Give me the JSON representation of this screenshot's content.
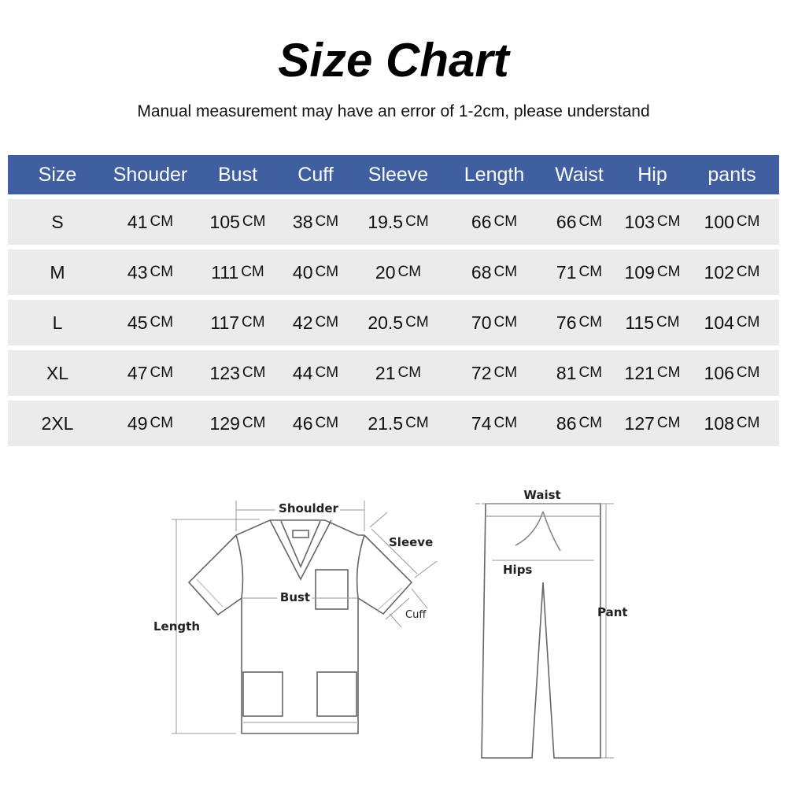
{
  "title": "Size Chart",
  "subtitle": "Manual measurement may have an error of 1-2cm, please understand",
  "table": {
    "header_color": "#3f5fa0",
    "unit": "CM",
    "headers": [
      "Size",
      "Shouder",
      "Bust",
      "Cuff",
      "Sleeve",
      "Length",
      "Waist",
      "Hip",
      "pants"
    ],
    "rows": [
      [
        "S",
        "41",
        "105",
        "38",
        "19.5",
        "66",
        "66",
        "103",
        "100"
      ],
      [
        "M",
        "43",
        "111",
        "40",
        "20",
        "68",
        "71",
        "109",
        "102"
      ],
      [
        "L",
        "45",
        "117",
        "42",
        "20.5",
        "70",
        "76",
        "115",
        "104"
      ],
      [
        "XL",
        "47",
        "123",
        "44",
        "21",
        "72",
        "81",
        "121",
        "106"
      ],
      [
        "2XL",
        "49",
        "129",
        "46",
        "21.5",
        "74",
        "86",
        "127",
        "108"
      ]
    ]
  },
  "diagram": {
    "shirt_labels": {
      "shoulder": "Shoulder",
      "sleeve": "Sleeve",
      "bust": "Bust",
      "cuff": "Cuff",
      "length": "Length"
    },
    "pants_labels": {
      "waist": "Waist",
      "hips": "Hips",
      "pant": "Pant"
    }
  }
}
